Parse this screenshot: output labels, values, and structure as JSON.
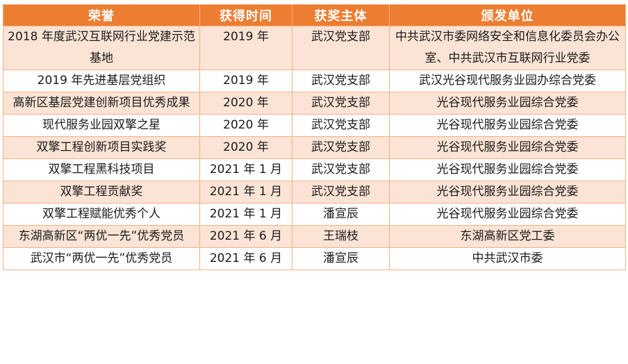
{
  "colors": {
    "header_bg": "#ed7d31",
    "header_text": "#ffffff",
    "band_fill": "#fbe4d5",
    "border": "#f4b183"
  },
  "table": {
    "headers": [
      "荣誉",
      "获得时间",
      "获奖主体",
      "颁发单位"
    ],
    "rows": [
      [
        "2018 年度武汉互联网行业党建示范基地",
        "2019 年",
        "武汉党支部",
        "中共武汉市委网络安全和信息化委员会办公室、中共武汉市互联网行业党委"
      ],
      [
        "2019 年先进基层党组织",
        "2019 年",
        "武汉党支部",
        "武汉光谷现代服务业园办综合党委"
      ],
      [
        "高新区基层党建创新项目优秀成果",
        "2020 年",
        "武汉党支部",
        "光谷现代服务业园综合党委"
      ],
      [
        "现代服务业园双擎之星",
        "2020 年",
        "武汉党支部",
        "光谷现代服务业园综合党委"
      ],
      [
        "双擎工程创新项目实践奖",
        "2020 年",
        "武汉党支部",
        "光谷现代服务业园综合党委"
      ],
      [
        "双擎工程黑科技项目",
        "2021 年 1 月",
        "武汉党支部",
        "光谷现代服务业园综合党委"
      ],
      [
        "双擎工程贡献奖",
        "2021 年 1 月",
        "武汉党支部",
        "光谷现代服务业园综合党委"
      ],
      [
        "双擎工程赋能优秀个人",
        "2021 年 1 月",
        "潘宣辰",
        "光谷现代服务业园综合党委"
      ],
      [
        "东湖高新区“两优一先”优秀党员",
        "2021 年 6 月",
        "王瑞枝",
        "东湖高新区党工委"
      ],
      [
        "武汉市“两优一先”优秀党员",
        "2021 年 6 月",
        "潘宣辰",
        "中共武汉市委"
      ]
    ]
  }
}
